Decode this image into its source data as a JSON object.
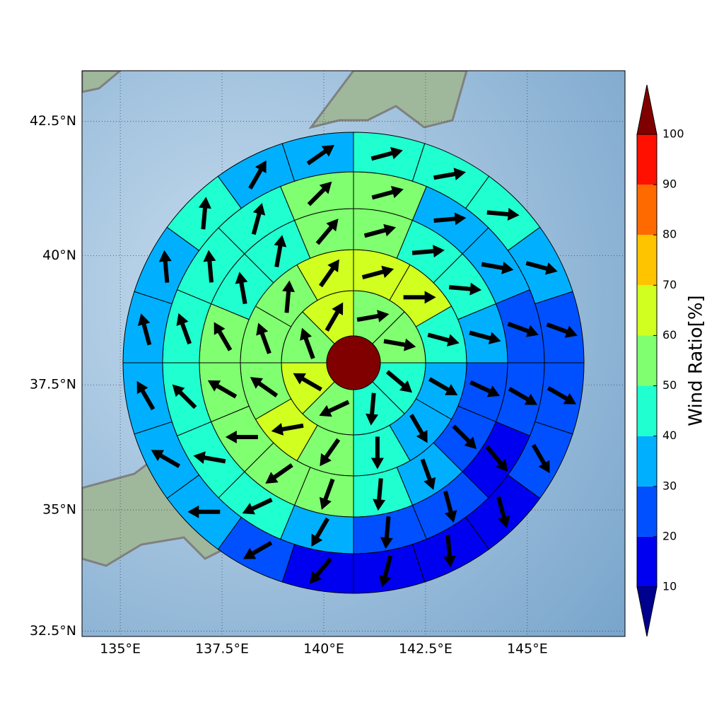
{
  "chart_data": {
    "type": "polar-wind",
    "xlim": [
      134.06,
      147.4
    ],
    "ylim": [
      32.39,
      43.42
    ],
    "xticks": [
      {
        "value": 135,
        "label": "135°E"
      },
      {
        "value": 137.5,
        "label": "137.5°E"
      },
      {
        "value": 140,
        "label": "140°E"
      },
      {
        "value": 142.5,
        "label": "142.5°E"
      },
      {
        "value": 145,
        "label": "145°E"
      }
    ],
    "yticks": [
      {
        "value": 32.5,
        "label": "32.5°N"
      },
      {
        "value": 35,
        "label": "35°N"
      },
      {
        "value": 37.5,
        "label": "37.5°N"
      },
      {
        "value": 40,
        "label": "40°N"
      },
      {
        "value": 42.5,
        "label": "42.5°N"
      }
    ],
    "grid": true,
    "rings": [
      {
        "values": [
          55,
          55,
          45,
          45,
          55,
          65,
          55,
          65
        ],
        "directions": [
          80,
          100,
          130,
          185,
          245,
          300,
          340,
          30
        ]
      },
      {
        "values": [
          65,
          65,
          45,
          35,
          35,
          45,
          55,
          65,
          55,
          55,
          55,
          65
        ],
        "directions": [
          75,
          90,
          105,
          120,
          150,
          180,
          215,
          260,
          305,
          340,
          5,
          35
        ]
      },
      {
        "values": [
          55,
          45,
          45,
          35,
          25,
          25,
          35,
          45,
          55,
          55,
          55,
          55,
          55,
          45,
          45,
          55
        ],
        "directions": [
          75,
          85,
          95,
          105,
          115,
          135,
          160,
          185,
          200,
          235,
          270,
          300,
          330,
          350,
          10,
          40
        ]
      },
      {
        "values": [
          55,
          35,
          35,
          25,
          25,
          15,
          25,
          25,
          35,
          45,
          45,
          45,
          45,
          45,
          45,
          55
        ],
        "directions": [
          75,
          85,
          100,
          110,
          120,
          140,
          165,
          185,
          210,
          245,
          280,
          315,
          340,
          355,
          15,
          45
        ]
      },
      {
        "values": [
          45,
          45,
          45,
          35,
          25,
          25,
          25,
          15,
          15,
          15,
          15,
          25,
          35,
          35,
          35,
          35,
          35,
          45,
          35,
          35
        ],
        "directions": [
          75,
          80,
          95,
          105,
          110,
          120,
          150,
          165,
          175,
          195,
          220,
          240,
          270,
          300,
          330,
          345,
          355,
          5,
          30,
          55
        ]
      }
    ],
    "colorbar": {
      "label": "Wind Ratio[%]",
      "ticks": [
        10,
        20,
        30,
        40,
        50,
        60,
        70,
        80,
        90,
        100
      ],
      "colors": [
        "#0000f0",
        "#0050ff",
        "#00b0ff",
        "#20ffd0",
        "#80ff70",
        "#d0ff20",
        "#ffc400",
        "#ff6a00",
        "#ff1000"
      ],
      "under": "#00008f",
      "over": "#800000"
    }
  }
}
